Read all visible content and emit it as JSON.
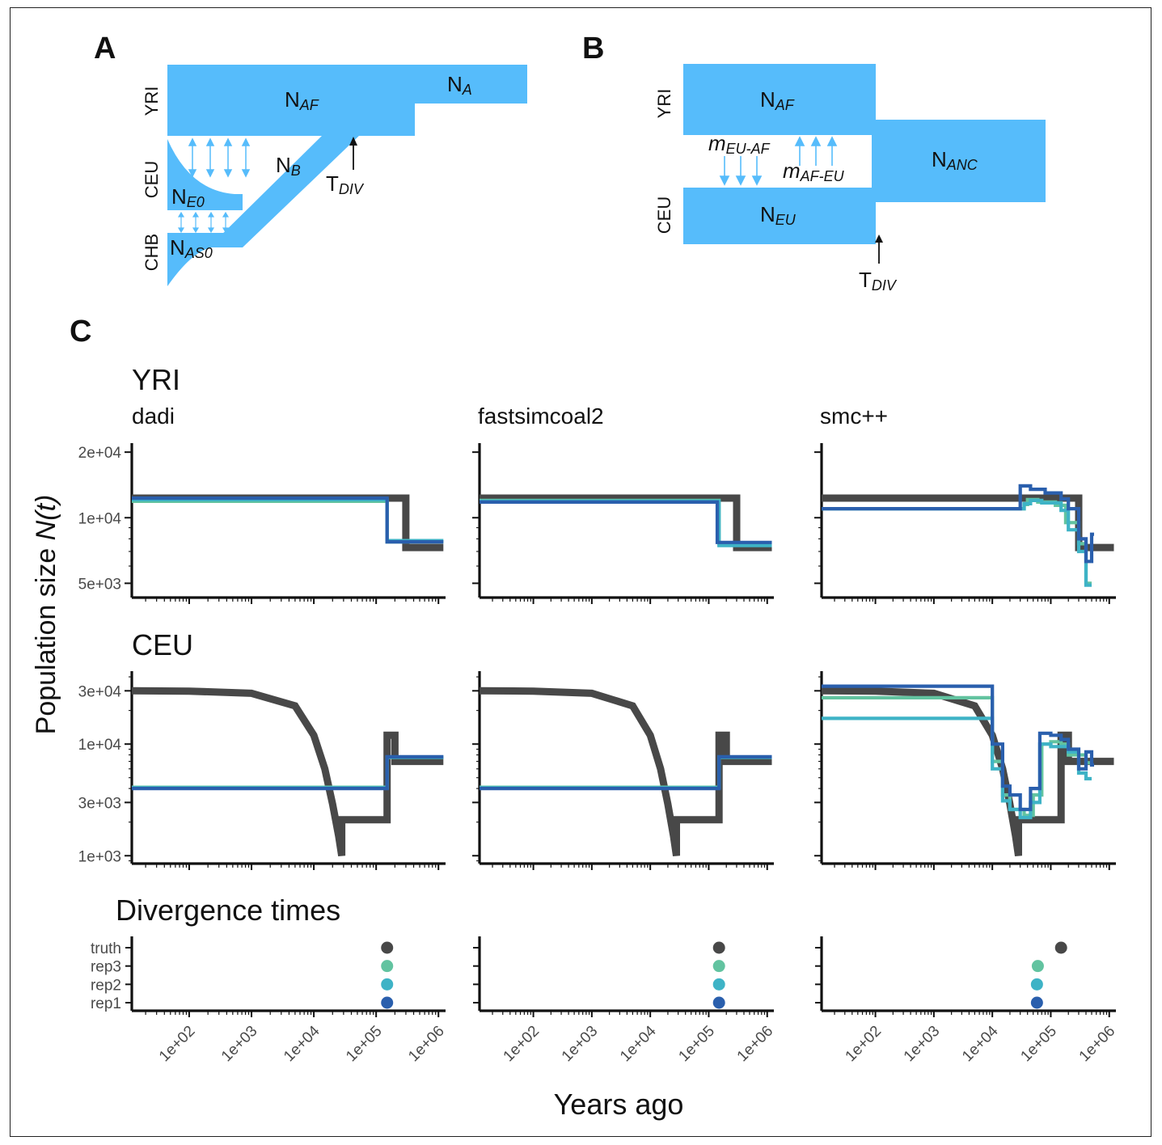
{
  "panel_labels": {
    "a": "A",
    "b": "B",
    "c": "C"
  },
  "diagram_a": {
    "pop_labels": [
      "YRI",
      "CEU",
      "CHB"
    ],
    "n_af": "N",
    "n_af_sub": "AF",
    "n_a": "N",
    "n_a_sub": "A",
    "n_b": "N",
    "n_b_sub": "B",
    "n_e0": "N",
    "n_e0_sub": "E0",
    "n_as0": "N",
    "n_as0_sub": "AS0",
    "t_div": "T",
    "t_div_sub": "DIV"
  },
  "diagram_b": {
    "pop_labels": [
      "YRI",
      "CEU"
    ],
    "n_af": "N",
    "n_af_sub": "AF",
    "n_eu": "N",
    "n_eu_sub": "EU",
    "n_anc": "N",
    "n_anc_sub": "ANC",
    "m_eu_af": "m",
    "m_eu_af_sub": "EU-AF",
    "m_af_eu": "m",
    "m_af_eu_sub": "AF-EU",
    "t_div": "T",
    "t_div_sub": "DIV"
  },
  "colors": {
    "fill": "#56bcfb",
    "arrow": "#56bcfb",
    "truth": "#484848",
    "rep1": "#2a5fad",
    "rep2": "#3eb3c6",
    "rep3": "#62c3a0"
  },
  "panel_c": {
    "row_titles": [
      "YRI",
      "CEU",
      "Divergence times"
    ],
    "col_titles": [
      "dadi",
      "fastsimcoal2",
      "smc++"
    ],
    "y_label": "Population size ",
    "y_label_italic": "N(t)",
    "x_label": "Years ago",
    "x_tick_labels": [
      "1e+02",
      "1e+03",
      "1e+04",
      "1e+05",
      "1e+06"
    ],
    "yri_tick_labels": [
      "2e+04",
      "1e+04",
      "5e+03"
    ],
    "ceu_tick_labels": [
      "3e+04",
      "1e+04",
      "3e+03",
      "1e+03"
    ],
    "div_categories": [
      "truth",
      "rep3",
      "rep2",
      "rep1"
    ]
  },
  "chart_data": [
    {
      "type": "line",
      "title": "dadi",
      "row": "YRI",
      "x_scale": "log",
      "y_scale": "log",
      "xlim": [
        12,
        1300000
      ],
      "ylim": [
        4300,
        22000
      ],
      "series": [
        {
          "name": "truth",
          "x": [
            12,
            300000,
            300000,
            1200000
          ],
          "y": [
            12300,
            12300,
            7300,
            7300
          ]
        },
        {
          "name": "rep3",
          "x": [
            12,
            150000,
            150000,
            1200000
          ],
          "y": [
            11900,
            11900,
            7750,
            7750
          ]
        },
        {
          "name": "rep2",
          "x": [
            12,
            150000,
            150000,
            1200000
          ],
          "y": [
            12100,
            12100,
            7850,
            7850
          ]
        },
        {
          "name": "rep1",
          "x": [
            12,
            150000,
            150000,
            1200000
          ],
          "y": [
            12300,
            12300,
            7750,
            7750
          ]
        }
      ]
    },
    {
      "type": "line",
      "title": "fastsimcoal2",
      "row": "YRI",
      "x_scale": "log",
      "y_scale": "log",
      "xlim": [
        12,
        1300000
      ],
      "ylim": [
        4300,
        22000
      ],
      "series": [
        {
          "name": "truth",
          "x": [
            12,
            300000,
            300000,
            1200000
          ],
          "y": [
            12300,
            12300,
            7300,
            7300
          ]
        },
        {
          "name": "rep3",
          "x": [
            12,
            150000,
            150000,
            1200000
          ],
          "y": [
            12000,
            12000,
            7600,
            7600
          ]
        },
        {
          "name": "rep2",
          "x": [
            12,
            150000,
            150000,
            1200000
          ],
          "y": [
            11900,
            11900,
            7450,
            7450
          ]
        },
        {
          "name": "rep1",
          "x": [
            12,
            140000,
            140000,
            1200000
          ],
          "y": [
            11800,
            11800,
            7700,
            7700
          ]
        }
      ]
    },
    {
      "type": "line",
      "title": "smc++",
      "row": "YRI",
      "x_scale": "log",
      "y_scale": "log",
      "xlim": [
        12,
        1300000
      ],
      "ylim": [
        4300,
        22000
      ],
      "series": [
        {
          "name": "truth",
          "x": [
            12,
            300000,
            300000,
            1200000
          ],
          "y": [
            12300,
            12300,
            7300,
            7300
          ]
        },
        {
          "name": "rep3",
          "x": [
            12,
            35000,
            35000,
            40000,
            40000,
            60000,
            60000,
            120000,
            120000,
            180000,
            180000,
            300000,
            300000,
            400000,
            400000,
            500000
          ],
          "y": [
            11000,
            11000,
            11500,
            11500,
            12100,
            12100,
            11800,
            11800,
            11400,
            11400,
            9500,
            9500,
            7600,
            7600,
            5000,
            5000
          ]
        },
        {
          "name": "rep2",
          "x": [
            12,
            35000,
            35000,
            45000,
            45000,
            70000,
            70000,
            150000,
            150000,
            200000,
            200000,
            300000,
            300000,
            400000,
            400000,
            500000
          ],
          "y": [
            11000,
            11000,
            11600,
            11600,
            12000,
            12000,
            11700,
            11700,
            10800,
            10800,
            8800,
            8800,
            7000,
            7000,
            4900,
            4900
          ]
        },
        {
          "name": "rep1",
          "x": [
            12,
            30000,
            30000,
            45000,
            45000,
            80000,
            80000,
            150000,
            150000,
            200000,
            200000,
            300000,
            300000,
            400000,
            400000,
            500000,
            500000,
            550000
          ],
          "y": [
            11000,
            11000,
            14000,
            14000,
            13500,
            13500,
            13000,
            13000,
            12200,
            12200,
            11000,
            11000,
            8000,
            8000,
            6300,
            6300,
            8400,
            8400
          ]
        }
      ]
    },
    {
      "type": "line",
      "title": "dadi",
      "row": "CEU",
      "x_scale": "log",
      "y_scale": "log",
      "xlim": [
        12,
        1300000
      ],
      "ylim": [
        850,
        45000
      ],
      "series": [
        {
          "name": "truth",
          "x": [
            12,
            100,
            1000,
            5000,
            10000,
            15000,
            20000,
            25000,
            28000,
            28000,
            150000,
            150000,
            200000,
            200000,
            1200000
          ],
          "y": [
            30000,
            29800,
            28500,
            22000,
            12000,
            6000,
            2900,
            1500,
            1000,
            2100,
            2100,
            12000,
            12000,
            7000,
            7000
          ]
        },
        {
          "name": "rep3",
          "x": [
            12,
            150000,
            150000,
            1200000
          ],
          "y": [
            4100,
            4100,
            7650,
            7650
          ]
        },
        {
          "name": "rep2",
          "x": [
            12,
            150000,
            150000,
            1200000
          ],
          "y": [
            4050,
            4050,
            7600,
            7600
          ]
        },
        {
          "name": "rep1",
          "x": [
            12,
            150000,
            150000,
            1200000
          ],
          "y": [
            4000,
            4000,
            7700,
            7700
          ]
        }
      ]
    },
    {
      "type": "line",
      "title": "fastsimcoal2",
      "row": "CEU",
      "x_scale": "log",
      "y_scale": "log",
      "xlim": [
        12,
        1300000
      ],
      "ylim": [
        850,
        45000
      ],
      "series": [
        {
          "name": "truth",
          "x": [
            12,
            100,
            1000,
            5000,
            10000,
            15000,
            20000,
            25000,
            28000,
            28000,
            150000,
            150000,
            200000,
            200000,
            1200000
          ],
          "y": [
            30000,
            29800,
            28500,
            22000,
            12000,
            6000,
            2900,
            1500,
            1000,
            2100,
            2100,
            12000,
            12000,
            7000,
            7000
          ]
        },
        {
          "name": "rep3",
          "x": [
            12,
            150000,
            150000,
            1200000
          ],
          "y": [
            4100,
            4100,
            7650,
            7650
          ]
        },
        {
          "name": "rep2",
          "x": [
            12,
            150000,
            150000,
            1200000
          ],
          "y": [
            4050,
            4050,
            7600,
            7600
          ]
        },
        {
          "name": "rep1",
          "x": [
            12,
            150000,
            150000,
            1200000
          ],
          "y": [
            4000,
            4000,
            7700,
            7700
          ]
        }
      ]
    },
    {
      "type": "line",
      "title": "smc++",
      "row": "CEU",
      "x_scale": "log",
      "y_scale": "log",
      "xlim": [
        12,
        1300000
      ],
      "ylim": [
        850,
        45000
      ],
      "series": [
        {
          "name": "truth",
          "x": [
            12,
            100,
            1000,
            5000,
            10000,
            15000,
            20000,
            25000,
            28000,
            28000,
            150000,
            150000,
            200000,
            200000,
            1200000
          ],
          "y": [
            30000,
            29800,
            28500,
            22000,
            12000,
            6000,
            2900,
            1500,
            1000,
            2100,
            2100,
            12000,
            12000,
            7000,
            7000
          ]
        },
        {
          "name": "rep3",
          "x": [
            12,
            10000,
            10000,
            15000,
            15000,
            20000,
            20000,
            35000,
            35000,
            50000,
            50000,
            70000,
            70000,
            100000,
            100000,
            150000,
            150000,
            200000,
            200000,
            400000,
            400000,
            500000
          ],
          "y": [
            26000,
            26000,
            7000,
            7000,
            3500,
            3500,
            2600,
            2600,
            2300,
            2300,
            3500,
            3500,
            10000,
            10000,
            10500,
            10500,
            10000,
            10000,
            8000,
            8000,
            6800,
            6800
          ]
        },
        {
          "name": "rep2",
          "x": [
            12,
            10000,
            10000,
            15000,
            15000,
            20000,
            20000,
            30000,
            30000,
            45000,
            45000,
            65000,
            65000,
            100000,
            100000,
            200000,
            200000,
            300000,
            300000,
            400000,
            400000,
            500000
          ],
          "y": [
            17000,
            17000,
            6000,
            6000,
            3100,
            3100,
            2600,
            2600,
            2200,
            2200,
            3000,
            3000,
            10000,
            10000,
            9500,
            9500,
            8500,
            8500,
            5500,
            5500,
            4900,
            4900
          ]
        },
        {
          "name": "rep1",
          "x": [
            12,
            10000,
            10000,
            15000,
            15000,
            20000,
            20000,
            30000,
            30000,
            45000,
            45000,
            65000,
            65000,
            100000,
            100000,
            150000,
            150000,
            200000,
            200000,
            300000,
            300000,
            400000,
            400000,
            500000,
            500000,
            550000
          ],
          "y": [
            33000,
            33000,
            10000,
            10000,
            4200,
            4200,
            3500,
            3500,
            2600,
            2600,
            4000,
            4000,
            12500,
            12500,
            12000,
            12000,
            11000,
            11000,
            9000,
            9000,
            6000,
            6000,
            8500,
            8500,
            6500,
            6500
          ]
        }
      ]
    },
    {
      "type": "scatter",
      "title": "dadi",
      "row": "Divergence times",
      "x_scale": "log",
      "xlim": [
        12,
        1300000
      ],
      "categories": [
        "truth",
        "rep3",
        "rep2",
        "rep1"
      ],
      "x": [
        150000,
        150000,
        150000,
        150000
      ]
    },
    {
      "type": "scatter",
      "title": "fastsimcoal2",
      "row": "Divergence times",
      "x_scale": "log",
      "xlim": [
        12,
        1300000
      ],
      "categories": [
        "truth",
        "rep3",
        "rep2",
        "rep1"
      ],
      "x": [
        150000,
        150000,
        150000,
        150000
      ]
    },
    {
      "type": "scatter",
      "title": "smc++",
      "row": "Divergence times",
      "x_scale": "log",
      "xlim": [
        12,
        1300000
      ],
      "categories": [
        "truth",
        "rep3",
        "rep2",
        "rep1"
      ],
      "x": [
        150000,
        60000,
        58000,
        58000
      ]
    }
  ]
}
